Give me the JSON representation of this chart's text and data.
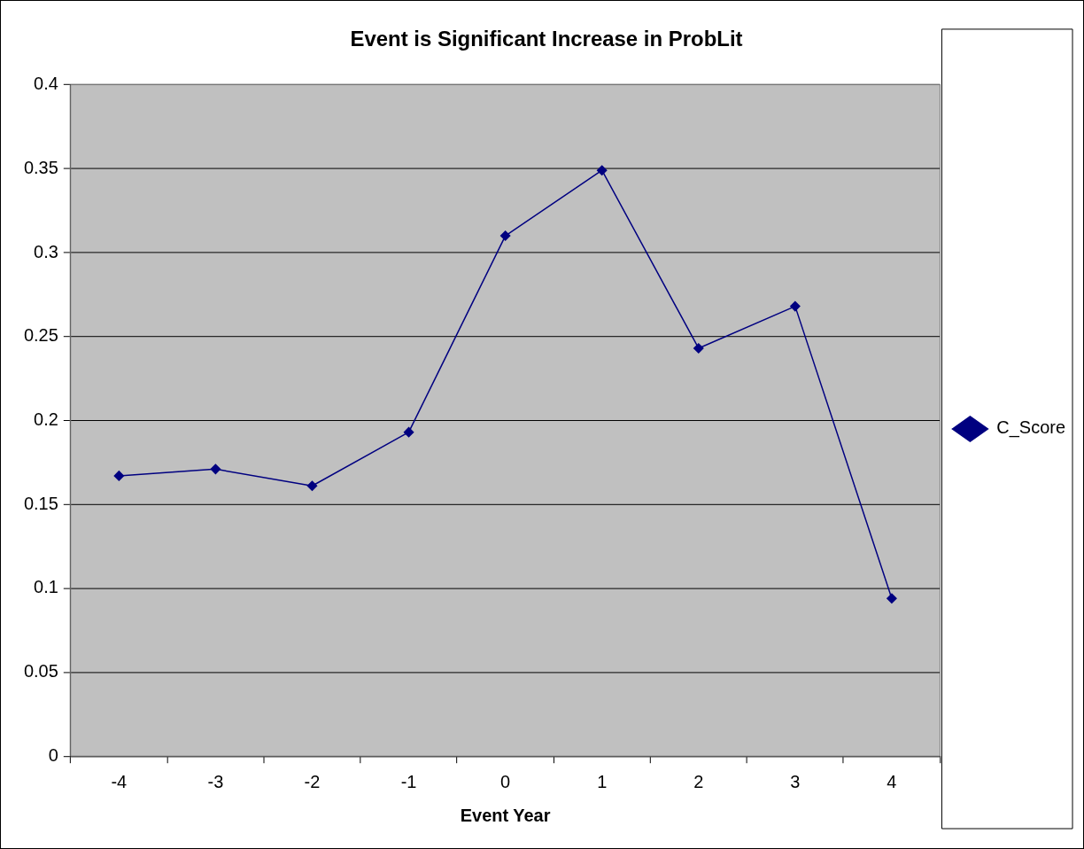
{
  "chart_data": {
    "type": "line",
    "title": "Event is Significant Increase in ProbLit",
    "xlabel": "Event Year",
    "categories": [
      "-4",
      "-3",
      "-2",
      "-1",
      "0",
      "1",
      "2",
      "3",
      "4"
    ],
    "series": [
      {
        "name": "C_Score",
        "color": "#000080",
        "values": [
          0.167,
          0.171,
          0.161,
          0.193,
          0.31,
          0.349,
          0.243,
          0.268,
          0.094
        ]
      }
    ],
    "ylim": [
      0,
      0.4
    ],
    "yticks": [
      0,
      0.05,
      0.1,
      0.15,
      0.2,
      0.25,
      0.3,
      0.35,
      0.4
    ],
    "grid": "y",
    "legend": "right",
    "marker": "diamond",
    "line_style": "solid"
  }
}
